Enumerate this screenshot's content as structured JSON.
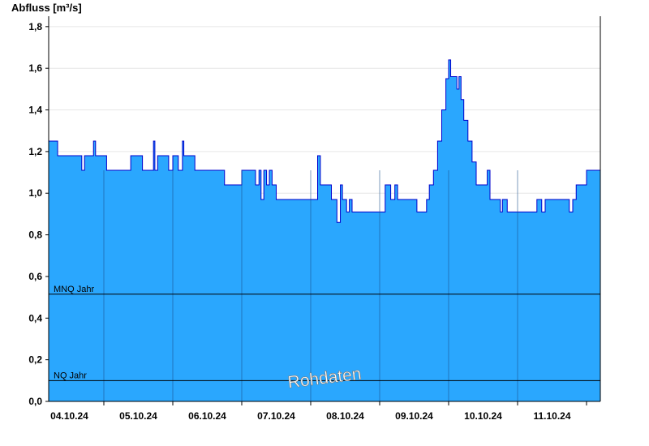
{
  "chart_data": {
    "type": "area",
    "ylabel": "Abfluss [m³/s]",
    "ylim": [
      0,
      1.85
    ],
    "yticks": [
      "0,0",
      "0,2",
      "0,4",
      "0,6",
      "0,8",
      "1,0",
      "1,2",
      "1,4",
      "1,6",
      "1,8"
    ],
    "x_tick_labels": [
      "04.10.24",
      "05.10.24",
      "06.10.24",
      "07.10.24",
      "08.10.24",
      "09.10.24",
      "10.10.24",
      "11.10.24"
    ],
    "xlim_days": [
      -0.3,
      7.7
    ],
    "grid": true,
    "reference_lines": [
      {
        "label": "MNQ Jahr",
        "value": 0.515
      },
      {
        "label": "NQ Jahr",
        "value": 0.1
      }
    ],
    "watermark": "Rohdaten",
    "colors": {
      "fill": "#2aa7fe",
      "line": "#0000cc",
      "reference": "#000000",
      "grid": "#e6e6e6"
    },
    "series_points": [
      [
        -0.3,
        1.25
      ],
      [
        -0.17,
        1.18
      ],
      [
        0.18,
        1.11
      ],
      [
        0.22,
        1.18
      ],
      [
        0.35,
        1.25
      ],
      [
        0.38,
        1.18
      ],
      [
        0.5,
        1.18
      ],
      [
        0.54,
        1.11
      ],
      [
        0.89,
        1.18
      ],
      [
        1.06,
        1.11
      ],
      [
        1.22,
        1.25
      ],
      [
        1.24,
        1.11
      ],
      [
        1.28,
        1.18
      ],
      [
        1.44,
        1.11
      ],
      [
        1.5,
        1.18
      ],
      [
        1.58,
        1.11
      ],
      [
        1.64,
        1.25
      ],
      [
        1.66,
        1.18
      ],
      [
        1.82,
        1.11
      ],
      [
        2.05,
        1.11
      ],
      [
        2.25,
        1.04
      ],
      [
        2.5,
        1.11
      ],
      [
        2.7,
        1.04
      ],
      [
        2.75,
        1.11
      ],
      [
        2.78,
        0.97
      ],
      [
        2.82,
        1.11
      ],
      [
        2.86,
        1.04
      ],
      [
        2.9,
        1.11
      ],
      [
        2.94,
        1.04
      ],
      [
        3.0,
        0.97
      ],
      [
        3.5,
        0.97
      ],
      [
        3.6,
        1.18
      ],
      [
        3.64,
        1.04
      ],
      [
        3.75,
        1.04
      ],
      [
        3.8,
        0.97
      ],
      [
        3.88,
        0.86
      ],
      [
        3.93,
        1.04
      ],
      [
        3.96,
        0.97
      ],
      [
        4.02,
        0.91
      ],
      [
        4.06,
        0.97
      ],
      [
        4.1,
        0.91
      ],
      [
        4.5,
        0.91
      ],
      [
        4.58,
        1.04
      ],
      [
        4.66,
        0.97
      ],
      [
        4.72,
        1.04
      ],
      [
        4.76,
        0.97
      ],
      [
        5.0,
        0.97
      ],
      [
        5.04,
        0.91
      ],
      [
        5.15,
        0.91
      ],
      [
        5.18,
        0.97
      ],
      [
        5.22,
        1.04
      ],
      [
        5.28,
        1.11
      ],
      [
        5.34,
        1.25
      ],
      [
        5.4,
        1.4
      ],
      [
        5.46,
        1.55
      ],
      [
        5.5,
        1.64
      ],
      [
        5.53,
        1.56
      ],
      [
        5.6,
        1.56
      ],
      [
        5.62,
        1.5
      ],
      [
        5.65,
        1.56
      ],
      [
        5.68,
        1.45
      ],
      [
        5.72,
        1.35
      ],
      [
        5.78,
        1.25
      ],
      [
        5.84,
        1.15
      ],
      [
        5.9,
        1.04
      ],
      [
        6.0,
        1.04
      ],
      [
        6.06,
        1.11
      ],
      [
        6.1,
        0.97
      ],
      [
        6.22,
        0.97
      ],
      [
        6.25,
        0.91
      ],
      [
        6.28,
        0.97
      ],
      [
        6.35,
        0.91
      ],
      [
        6.75,
        0.91
      ],
      [
        6.78,
        0.97
      ],
      [
        6.85,
        0.91
      ],
      [
        6.9,
        0.97
      ],
      [
        7.2,
        0.97
      ],
      [
        7.25,
        0.91
      ],
      [
        7.3,
        0.97
      ],
      [
        7.35,
        1.04
      ],
      [
        7.5,
        1.11
      ],
      [
        7.7,
        1.11
      ]
    ]
  }
}
